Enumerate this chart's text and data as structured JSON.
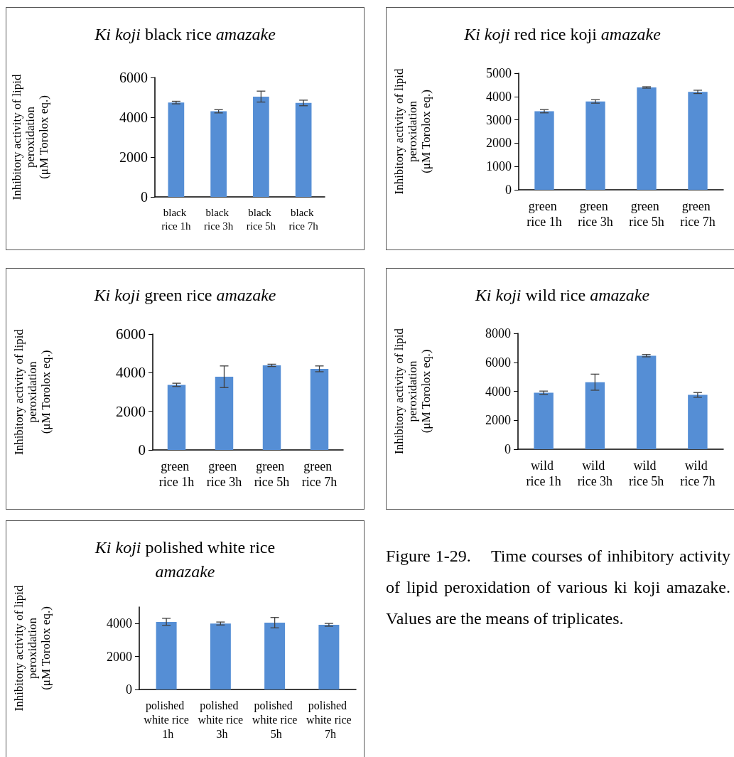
{
  "chart_data": [
    {
      "type": "bar",
      "title": "Ki koji black rice amazake",
      "ylabel": "Inhibitory activity of lipid\nperoxidation\n(μM Torolox eq.)",
      "categories": [
        "black rice 1h",
        "black rice 3h",
        "black rice 5h",
        "black rice 7h"
      ],
      "values": [
        4740,
        4300,
        5040,
        4720
      ],
      "errors": [
        65,
        80,
        275,
        140
      ],
      "color": "#558ed5",
      "ylim": [
        0,
        6000
      ],
      "yticks": [
        0,
        2000,
        4000,
        6000
      ]
    },
    {
      "type": "bar",
      "title": "Ki koji red rice koji amazake",
      "ylabel": "Inhibitory activity of lipid\nperoxidation\n(μM Torolox eq.)",
      "categories": [
        "green rice 1h",
        "green rice 3h",
        "green rice 5h",
        "green rice 7h"
      ],
      "values": [
        3370,
        3790,
        4390,
        4200
      ],
      "errors": [
        70,
        75,
        30,
        70
      ],
      "color": "#558ed5",
      "ylim": [
        0,
        5000
      ],
      "yticks": [
        0,
        1000,
        2000,
        3000,
        4000,
        5000
      ]
    },
    {
      "type": "bar",
      "title": "Ki koji green rice amazake",
      "ylabel": "Inhibitory activity of lipid\nperoxidation\n(μM Torolox eq.)",
      "categories": [
        "green rice 1h",
        "green rice 3h",
        "green rice 5h",
        "green rice 7h"
      ],
      "values": [
        3370,
        3790,
        4380,
        4200
      ],
      "errors": [
        85,
        560,
        60,
        150
      ],
      "color": "#558ed5",
      "ylim": [
        0,
        6000
      ],
      "yticks": [
        0,
        2000,
        4000,
        6000
      ]
    },
    {
      "type": "bar",
      "title": "Ki koji wild rice amazake",
      "ylabel": "Inhibitory activity of lipid\nperoxidation\n(μM Torolox eq.)",
      "categories": [
        "wild rice 1h",
        "wild rice 3h",
        "wild rice 5h",
        "wild rice 7h"
      ],
      "values": [
        3900,
        4630,
        6460,
        3750
      ],
      "errors": [
        115,
        555,
        80,
        165
      ],
      "color": "#558ed5",
      "ylim": [
        0,
        8000
      ],
      "yticks": [
        0,
        2000,
        4000,
        6000,
        8000
      ]
    },
    {
      "type": "bar",
      "title": "Ki koji polished white rice amazake",
      "ylabel": "Inhibitory activity of lipid\nperoxidation\n(μM Torolox eq.)",
      "categories": [
        "polished white rice 1h",
        "polished white rice 3h",
        "polished white rice 5h",
        "polished white rice 7h"
      ],
      "values": [
        4100,
        4000,
        4050,
        3920
      ],
      "errors": [
        215,
        90,
        315,
        85
      ],
      "color": "#558ed5",
      "ylim": [
        0,
        5000
      ],
      "yticks": [
        0,
        2000,
        4000
      ]
    },
    {
      "type": "other",
      "annotations": [
        "Figure 1-29.    Time courses of inhibitory activity of lipid peroxidation of various ki koji amazake.  Values are the means of triplicates."
      ]
    }
  ]
}
